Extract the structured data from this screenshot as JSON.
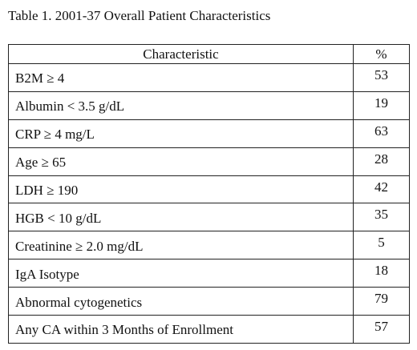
{
  "table": {
    "caption": "Table 1.  2001-37 Overall Patient Characteristics",
    "headers": [
      "Characteristic",
      "%"
    ],
    "rows": [
      {
        "characteristic": "B2M ≥ 4",
        "pct": "53"
      },
      {
        "characteristic": "Albumin < 3.5 g/dL",
        "pct": "19"
      },
      {
        "characteristic": "CRP ≥ 4 mg/L",
        "pct": "63"
      },
      {
        "characteristic": "Age ≥ 65",
        "pct": "28"
      },
      {
        "characteristic": "LDH  ≥ 190",
        "pct": "42"
      },
      {
        "characteristic": "HGB < 10 g/dL",
        "pct": "35"
      },
      {
        "characteristic": "Creatinine ≥ 2.0 mg/dL",
        "pct": "5"
      },
      {
        "characteristic": "IgA Isotype",
        "pct": "18"
      },
      {
        "characteristic": "Abnormal cytogenetics",
        "pct": "79"
      },
      {
        "characteristic": "Any CA within 3 Months of Enrollment",
        "pct": "57"
      }
    ]
  }
}
